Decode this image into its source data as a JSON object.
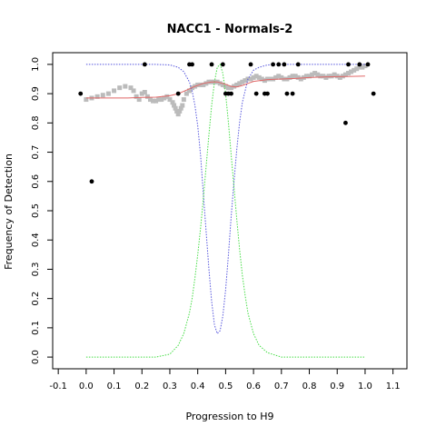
{
  "chart_data": {
    "type": "scatter",
    "title": "NACC1 - Normals-2",
    "xlabel": "Progression to H9",
    "ylabel": "Frequency of Detection",
    "xlim": [
      -0.12,
      1.15
    ],
    "ylim": [
      -0.04,
      1.04
    ],
    "x_ticks": [
      "-0.1",
      "0.0",
      "0.1",
      "0.2",
      "0.3",
      "0.4",
      "0.5",
      "0.6",
      "0.7",
      "0.8",
      "0.9",
      "1.0",
      "1.1"
    ],
    "y_ticks": [
      "0.0",
      "0.1",
      "0.2",
      "0.3",
      "0.4",
      "0.5",
      "0.6",
      "0.7",
      "0.8",
      "0.9",
      "1.0"
    ],
    "grid": false,
    "colors": {
      "observed": "#000000",
      "smoothed": "#bbbbbb",
      "fit": "#e06666",
      "blue_curve": "#5555dd",
      "green_curve": "#44dd44"
    },
    "series": [
      {
        "kind": "points",
        "points": [
          [
            -0.02,
            0.9
          ],
          [
            0.02,
            0.6
          ],
          [
            0.21,
            1.0
          ],
          [
            0.33,
            0.9
          ],
          [
            0.37,
            1.0
          ],
          [
            0.38,
            1.0
          ],
          [
            0.45,
            1.0
          ],
          [
            0.49,
            1.0
          ],
          [
            0.5,
            0.9
          ],
          [
            0.51,
            0.9
          ],
          [
            0.52,
            0.9
          ],
          [
            0.59,
            1.0
          ],
          [
            0.61,
            0.9
          ],
          [
            0.64,
            0.9
          ],
          [
            0.65,
            0.9
          ],
          [
            0.67,
            1.0
          ],
          [
            0.69,
            1.0
          ],
          [
            0.71,
            1.0
          ],
          [
            0.72,
            0.9
          ],
          [
            0.74,
            0.9
          ],
          [
            0.76,
            1.0
          ],
          [
            0.93,
            0.8
          ],
          [
            0.94,
            1.0
          ],
          [
            0.98,
            1.0
          ],
          [
            1.01,
            1.0
          ],
          [
            1.03,
            0.9
          ]
        ]
      },
      {
        "kind": "smoothed",
        "points": [
          [
            0.0,
            0.88
          ],
          [
            0.02,
            0.885
          ],
          [
            0.04,
            0.89
          ],
          [
            0.06,
            0.895
          ],
          [
            0.08,
            0.9
          ],
          [
            0.1,
            0.91
          ],
          [
            0.12,
            0.92
          ],
          [
            0.14,
            0.925
          ],
          [
            0.16,
            0.92
          ],
          [
            0.17,
            0.91
          ],
          [
            0.18,
            0.89
          ],
          [
            0.19,
            0.88
          ],
          [
            0.2,
            0.9
          ],
          [
            0.21,
            0.905
          ],
          [
            0.22,
            0.89
          ],
          [
            0.23,
            0.88
          ],
          [
            0.24,
            0.875
          ],
          [
            0.25,
            0.875
          ],
          [
            0.26,
            0.88
          ],
          [
            0.27,
            0.88
          ],
          [
            0.28,
            0.885
          ],
          [
            0.29,
            0.89
          ],
          [
            0.3,
            0.88
          ],
          [
            0.31,
            0.87
          ],
          [
            0.315,
            0.86
          ],
          [
            0.32,
            0.85
          ],
          [
            0.325,
            0.84
          ],
          [
            0.33,
            0.83
          ],
          [
            0.335,
            0.84
          ],
          [
            0.34,
            0.85
          ],
          [
            0.345,
            0.86
          ],
          [
            0.35,
            0.88
          ],
          [
            0.36,
            0.9
          ],
          [
            0.37,
            0.91
          ],
          [
            0.38,
            0.92
          ],
          [
            0.39,
            0.925
          ],
          [
            0.4,
            0.93
          ],
          [
            0.41,
            0.93
          ],
          [
            0.42,
            0.93
          ],
          [
            0.43,
            0.935
          ],
          [
            0.44,
            0.94
          ],
          [
            0.45,
            0.94
          ],
          [
            0.46,
            0.94
          ],
          [
            0.47,
            0.94
          ],
          [
            0.48,
            0.935
          ],
          [
            0.49,
            0.93
          ],
          [
            0.5,
            0.925
          ],
          [
            0.51,
            0.92
          ],
          [
            0.52,
            0.92
          ],
          [
            0.53,
            0.925
          ],
          [
            0.54,
            0.93
          ],
          [
            0.55,
            0.935
          ],
          [
            0.56,
            0.94
          ],
          [
            0.57,
            0.945
          ],
          [
            0.58,
            0.95
          ],
          [
            0.59,
            0.95
          ],
          [
            0.6,
            0.955
          ],
          [
            0.61,
            0.96
          ],
          [
            0.62,
            0.955
          ],
          [
            0.63,
            0.95
          ],
          [
            0.64,
            0.945
          ],
          [
            0.65,
            0.95
          ],
          [
            0.66,
            0.95
          ],
          [
            0.67,
            0.95
          ],
          [
            0.68,
            0.955
          ],
          [
            0.69,
            0.96
          ],
          [
            0.7,
            0.955
          ],
          [
            0.71,
            0.95
          ],
          [
            0.72,
            0.95
          ],
          [
            0.73,
            0.955
          ],
          [
            0.74,
            0.96
          ],
          [
            0.75,
            0.96
          ],
          [
            0.76,
            0.955
          ],
          [
            0.77,
            0.95
          ],
          [
            0.78,
            0.955
          ],
          [
            0.79,
            0.96
          ],
          [
            0.8,
            0.96
          ],
          [
            0.81,
            0.965
          ],
          [
            0.82,
            0.97
          ],
          [
            0.83,
            0.965
          ],
          [
            0.84,
            0.96
          ],
          [
            0.85,
            0.96
          ],
          [
            0.86,
            0.955
          ],
          [
            0.87,
            0.96
          ],
          [
            0.88,
            0.96
          ],
          [
            0.89,
            0.965
          ],
          [
            0.9,
            0.96
          ],
          [
            0.91,
            0.955
          ],
          [
            0.92,
            0.96
          ],
          [
            0.93,
            0.965
          ],
          [
            0.94,
            0.97
          ],
          [
            0.95,
            0.975
          ],
          [
            0.96,
            0.98
          ],
          [
            0.97,
            0.985
          ],
          [
            0.98,
            0.99
          ],
          [
            0.99,
            0.99
          ],
          [
            1.0,
            0.995
          ]
        ]
      },
      {
        "kind": "fit",
        "points": [
          [
            0.0,
            0.885
          ],
          [
            0.05,
            0.885
          ],
          [
            0.1,
            0.885
          ],
          [
            0.15,
            0.885
          ],
          [
            0.2,
            0.887
          ],
          [
            0.25,
            0.888
          ],
          [
            0.3,
            0.893
          ],
          [
            0.33,
            0.9
          ],
          [
            0.36,
            0.912
          ],
          [
            0.39,
            0.925
          ],
          [
            0.42,
            0.935
          ],
          [
            0.45,
            0.94
          ],
          [
            0.47,
            0.94
          ],
          [
            0.5,
            0.932
          ],
          [
            0.52,
            0.925
          ],
          [
            0.54,
            0.923
          ],
          [
            0.56,
            0.928
          ],
          [
            0.58,
            0.935
          ],
          [
            0.6,
            0.942
          ],
          [
            0.65,
            0.948
          ],
          [
            0.7,
            0.95
          ],
          [
            0.75,
            0.952
          ],
          [
            0.8,
            0.955
          ],
          [
            0.85,
            0.957
          ],
          [
            0.9,
            0.958
          ],
          [
            0.95,
            0.959
          ],
          [
            1.0,
            0.96
          ]
        ]
      },
      {
        "kind": "blue_curve",
        "points": [
          [
            0.0,
            1.0
          ],
          [
            0.25,
            1.0
          ],
          [
            0.3,
            0.998
          ],
          [
            0.33,
            0.99
          ],
          [
            0.35,
            0.975
          ],
          [
            0.37,
            0.94
          ],
          [
            0.38,
            0.91
          ],
          [
            0.39,
            0.86
          ],
          [
            0.4,
            0.79
          ],
          [
            0.41,
            0.69
          ],
          [
            0.42,
            0.56
          ],
          [
            0.43,
            0.43
          ],
          [
            0.44,
            0.3
          ],
          [
            0.45,
            0.19
          ],
          [
            0.46,
            0.11
          ],
          [
            0.47,
            0.08
          ],
          [
            0.48,
            0.09
          ],
          [
            0.49,
            0.14
          ],
          [
            0.5,
            0.23
          ],
          [
            0.51,
            0.35
          ],
          [
            0.52,
            0.48
          ],
          [
            0.53,
            0.6
          ],
          [
            0.54,
            0.71
          ],
          [
            0.55,
            0.8
          ],
          [
            0.56,
            0.87
          ],
          [
            0.57,
            0.91
          ],
          [
            0.58,
            0.95
          ],
          [
            0.6,
            0.98
          ],
          [
            0.62,
            0.99
          ],
          [
            0.65,
            0.998
          ],
          [
            0.7,
            1.0
          ],
          [
            1.0,
            1.0
          ]
        ]
      },
      {
        "kind": "green_curve",
        "points": [
          [
            0.0,
            0.0
          ],
          [
            0.25,
            0.0
          ],
          [
            0.3,
            0.01
          ],
          [
            0.33,
            0.04
          ],
          [
            0.35,
            0.08
          ],
          [
            0.37,
            0.15
          ],
          [
            0.38,
            0.2
          ],
          [
            0.39,
            0.27
          ],
          [
            0.4,
            0.35
          ],
          [
            0.41,
            0.44
          ],
          [
            0.42,
            0.54
          ],
          [
            0.43,
            0.65
          ],
          [
            0.44,
            0.76
          ],
          [
            0.45,
            0.86
          ],
          [
            0.46,
            0.94
          ],
          [
            0.47,
            0.99
          ],
          [
            0.48,
            1.0
          ],
          [
            0.49,
            0.97
          ],
          [
            0.5,
            0.9
          ],
          [
            0.51,
            0.8
          ],
          [
            0.52,
            0.69
          ],
          [
            0.53,
            0.58
          ],
          [
            0.54,
            0.47
          ],
          [
            0.55,
            0.37
          ],
          [
            0.56,
            0.28
          ],
          [
            0.57,
            0.21
          ],
          [
            0.58,
            0.15
          ],
          [
            0.6,
            0.08
          ],
          [
            0.62,
            0.04
          ],
          [
            0.65,
            0.015
          ],
          [
            0.7,
            0.0
          ],
          [
            1.0,
            0.0
          ]
        ]
      }
    ]
  }
}
